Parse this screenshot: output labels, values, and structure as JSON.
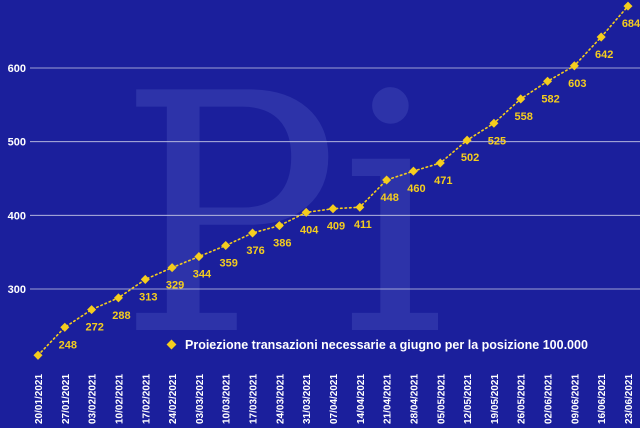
{
  "chart_data": {
    "type": "line",
    "title": "",
    "xlabel": "",
    "ylabel": "",
    "ylim": [
      200,
      700
    ],
    "y_ticks": [
      300,
      400,
      500,
      600
    ],
    "grid": true,
    "legend_position": "bottom-right",
    "x": [
      "20/01/2021",
      "27/01/2021",
      "03/02/2021",
      "10/02/2021",
      "17/02/2021",
      "24/02/2021",
      "03/03/2021",
      "10/03/2021",
      "17/03/2021",
      "24/03/2021",
      "31/03/2021",
      "07/04/2021",
      "14/04/2021",
      "21/04/2021",
      "28/04/2021",
      "05/05/2021",
      "12/05/2021",
      "19/05/2021",
      "26/05/2021",
      "02/06/2021",
      "09/06/2021",
      "16/06/2021",
      "23/06/2021"
    ],
    "series": [
      {
        "name": "Proiezione transazioni necessarie a giugno per la posizione 100.000",
        "values": [
          210,
          248,
          272,
          288,
          313,
          329,
          344,
          359,
          376,
          386,
          404,
          409,
          411,
          448,
          460,
          471,
          502,
          525,
          558,
          582,
          603,
          642,
          684
        ],
        "labels": [
          "",
          "248",
          "272",
          "288",
          "313",
          "329",
          "344",
          "359",
          "376",
          "386",
          "404",
          "409",
          "411",
          "448",
          "460",
          "471",
          "502",
          "525",
          "558",
          "582",
          "603",
          "642",
          "684"
        ],
        "color": "#f5cd1e"
      }
    ]
  },
  "watermark_text": "Pi",
  "colors": {
    "background": "#1b1f9c",
    "series": "#f5cd1e",
    "grid": "#c9cbe6",
    "text": "#ffffff"
  }
}
